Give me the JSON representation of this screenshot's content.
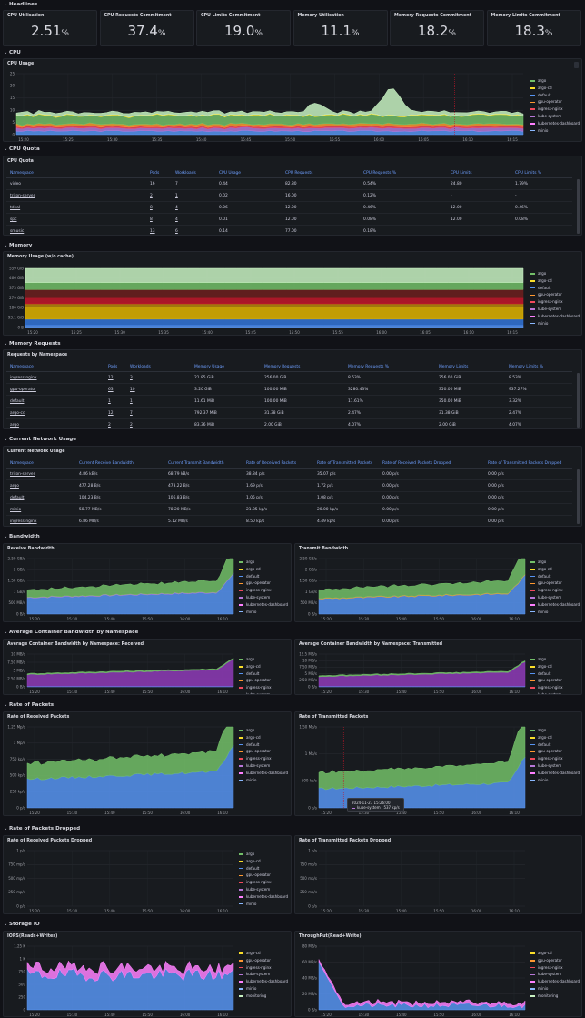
{
  "sections": {
    "headlines": "Headlines",
    "cpu": "CPU",
    "cpu_quota": "CPU Quota",
    "memory": "Memory",
    "memory_requests": "Memory Requests",
    "network": "Current Network Usage",
    "bandwidth": "Bandwidth",
    "avg_bw": "Average Container Bandwidth by Namespace",
    "packets": "Rate of Packets",
    "dropped": "Rate of Packets Dropped",
    "storage": "Storage IO"
  },
  "stats": [
    {
      "title": "CPU Utilisation",
      "value": "2.51",
      "unit": "%"
    },
    {
      "title": "CPU Requests Commitment",
      "value": "37.4",
      "unit": "%"
    },
    {
      "title": "CPU Limits Commitment",
      "value": "19.0",
      "unit": "%"
    },
    {
      "title": "Memory Utilisation",
      "value": "11.1",
      "unit": "%"
    },
    {
      "title": "Memory Requests Commitment",
      "value": "18.2",
      "unit": "%"
    },
    {
      "title": "Memory Limits Commitment",
      "value": "18.3",
      "unit": "%"
    }
  ],
  "legend_ns": [
    "argo",
    "argo-cd",
    "default",
    "gpu-operator",
    "ingress-nginx",
    "kube-system",
    "kubernetes-dashboard",
    "minio"
  ],
  "legend_ns_cut": "minio",
  "legend_storage": [
    "argo-cd",
    "gpu-operator",
    "ingress-nginx",
    "kube-system",
    "kubernetes-dashboard",
    "minio",
    "monitoring"
  ],
  "colors": {
    "argo": "#73bf69",
    "argo-cd": "#fade2a",
    "default": "#5794f2",
    "gpu-operator": "#ff9830",
    "ingress-nginx": "#f2495c",
    "kube-system": "#b877d9",
    "kubernetes-dashboard": "#ff80ff",
    "minio": "#8ab8ff",
    "monitoring": "#c8f2c2",
    "triton-server": "#c4162a",
    "video": "#e0b400"
  },
  "cpu_usage": {
    "title": "CPU Usage",
    "yticks": [
      "0",
      "5",
      "10",
      "15",
      "20",
      "25"
    ],
    "xticks": [
      "15:20",
      "15:25",
      "15:30",
      "15:35",
      "15:40",
      "15:45",
      "15:50",
      "15:55",
      "16:00",
      "16:05",
      "16:10",
      "16:15"
    ]
  },
  "cpu_quota": {
    "title": "CPU Quota",
    "cols": [
      "Namespace",
      "Pods",
      "Workloads",
      "CPU Usage",
      "CPU Requests",
      "CPU Requests %",
      "CPU Limits",
      "CPU Limits %"
    ],
    "rows": [
      [
        "video",
        "16",
        "7",
        "0.44",
        "82.80",
        "0.54%",
        "24.80",
        "1.79%"
      ],
      [
        "triton-server",
        "2",
        "1",
        "0.02",
        "16.00",
        "0.12%",
        "-",
        "-"
      ],
      [
        "tdeal",
        "8",
        "4",
        "0.06",
        "12.00",
        "0.46%",
        "12.00",
        "0.46%"
      ],
      [
        "spc",
        "8",
        "4",
        "0.01",
        "12.00",
        "0.08%",
        "12.00",
        "0.08%"
      ],
      [
        "smusic",
        "13",
        "6",
        "0.14",
        "77.00",
        "0.18%",
        "",
        ""
      ]
    ]
  },
  "memory_usage": {
    "title": "Memory Usage (w/o cache)",
    "yticks": [
      "0 B",
      "93.1 GiB",
      "186 GiB",
      "279 GiB",
      "373 GiB",
      "466 GiB",
      "559 GiB"
    ],
    "xticks": [
      "15:20",
      "15:25",
      "15:30",
      "15:35",
      "15:40",
      "15:45",
      "15:50",
      "15:55",
      "16:00",
      "16:05",
      "16:10",
      "16:15"
    ]
  },
  "memory_req": {
    "title": "Requests by Namespace",
    "cols": [
      "Namespace",
      "Pods",
      "Workloads",
      "Memory Usage",
      "Memory Requests",
      "Memory Requests %",
      "Memory Limits",
      "Memory Limits %"
    ],
    "rows": [
      [
        "ingress-nginx",
        "12",
        "3",
        "21.85 GiB",
        "256.00 GiB",
        "8.53%",
        "256.00 GiB",
        "8.53%"
      ],
      [
        "gpu-operator",
        "63",
        "10",
        "3.20 GiB",
        "100.00 MiB",
        "3280.43%",
        "350.00 MiB",
        "937.27%"
      ],
      [
        "default",
        "1",
        "1",
        "11.61 MiB",
        "100.00 MiB",
        "11.61%",
        "350.00 MiB",
        "3.32%"
      ],
      [
        "argo-cd",
        "12",
        "7",
        "792.37 MiB",
        "31.38 GiB",
        "2.47%",
        "31.38 GiB",
        "2.47%"
      ],
      [
        "argo",
        "2",
        "2",
        "83.36 MiB",
        "2.00 GiB",
        "4.07%",
        "2.00 GiB",
        "4.07%"
      ]
    ]
  },
  "network": {
    "title": "Current Network Usage",
    "cols": [
      "Namespace",
      "Current Receive Bandwidth",
      "Current Transmit Bandwidth",
      "Rate of Received Packets",
      "Rate of Transmitted Packets",
      "Rate of Received Packets Dropped",
      "Rate of Transmitted Packets Dropped"
    ],
    "rows": [
      [
        "triton-server",
        "4.86 kB/s",
        "68.79 kB/s",
        "38.84 p/s",
        "35.07 p/s",
        "0.00 p/s",
        "0.00 p/s"
      ],
      [
        "argo",
        "477.28 B/s",
        "473.22 B/s",
        "1.69 p/s",
        "1.72 p/s",
        "0.00 p/s",
        "0.00 p/s"
      ],
      [
        "default",
        "104.23 B/s",
        "106.83 B/s",
        "1.05 p/s",
        "1.08 p/s",
        "0.00 p/s",
        "0.00 p/s"
      ],
      [
        "minio",
        "58.77 MB/s",
        "78.20 MB/s",
        "21.85 kp/s",
        "20.00 kp/s",
        "0.00 p/s",
        "0.00 p/s"
      ],
      [
        "ingress-nginx",
        "6.86 MB/s",
        "5.12 MB/s",
        "8.50 kp/s",
        "4.49 kp/s",
        "0.00 p/s",
        "0.00 p/s"
      ]
    ]
  },
  "xticks_short": [
    "15:20",
    "15:30",
    "15:40",
    "15:50",
    "16:00",
    "16:10"
  ],
  "receive_bw": {
    "title": "Receive Bandwidth",
    "yticks": [
      "0 B/s",
      "500 MB/s",
      "1 GB/s",
      "1.50 GB/s",
      "2 GB/s",
      "2.50 GB/s"
    ]
  },
  "transmit_bw": {
    "title": "Transmit Bandwidth",
    "yticks": [
      "0 B/s",
      "500 MB/s",
      "1 GB/s",
      "1.50 GB/s",
      "2 GB/s",
      "2.50 GB/s"
    ]
  },
  "avg_rx": {
    "title": "Average Container Bandwidth by Namespace: Received",
    "yticks": [
      "0 B/s",
      "2.50 MB/s",
      "5 MB/s",
      "7.50 MB/s",
      "10 MB/s"
    ]
  },
  "avg_tx": {
    "title": "Average Container Bandwidth by Namespace: Transmitted",
    "yticks": [
      "0 B/s",
      "2.50 MB/s",
      "5 MB/s",
      "7.50 MB/s",
      "10 MB/s",
      "12.5 MB/s"
    ]
  },
  "rx_packets": {
    "title": "Rate of Received Packets",
    "yticks": [
      "0 p/s",
      "250 kp/s",
      "500 kp/s",
      "750 kp/s",
      "1 Mp/s",
      "1.25 Mp/s"
    ]
  },
  "tx_packets": {
    "title": "Rate of Transmitted Packets",
    "yticks": [
      "0 p/s",
      "500 kp/s",
      "1 Mp/s",
      "1.50 Mp/s"
    ],
    "tooltip_time": "2024-11-27 15:26:00",
    "tooltip_series": "kube-system",
    "tooltip_value": "537 kp/s"
  },
  "rx_dropped": {
    "title": "Rate of Received Packets Dropped",
    "yticks": [
      "0 p/s",
      "250 mp/s",
      "500 mp/s",
      "750 mp/s",
      "1 p/s"
    ]
  },
  "tx_dropped": {
    "title": "Rate of Transmitted Packets Dropped",
    "yticks": [
      "0 p/s",
      "250 mp/s",
      "500 mp/s",
      "750 mp/s",
      "1 p/s"
    ]
  },
  "iops": {
    "title": "IOPS(Reads+Writes)",
    "yticks": [
      "0",
      "250",
      "500",
      "750",
      "1 K",
      "1.25 K"
    ]
  },
  "throughput": {
    "title": "ThroughPut(Read+Write)",
    "yticks": [
      "0 B/s",
      "20 MB/s",
      "40 MB/s",
      "60 MB/s",
      "80 MB/s"
    ]
  }
}
